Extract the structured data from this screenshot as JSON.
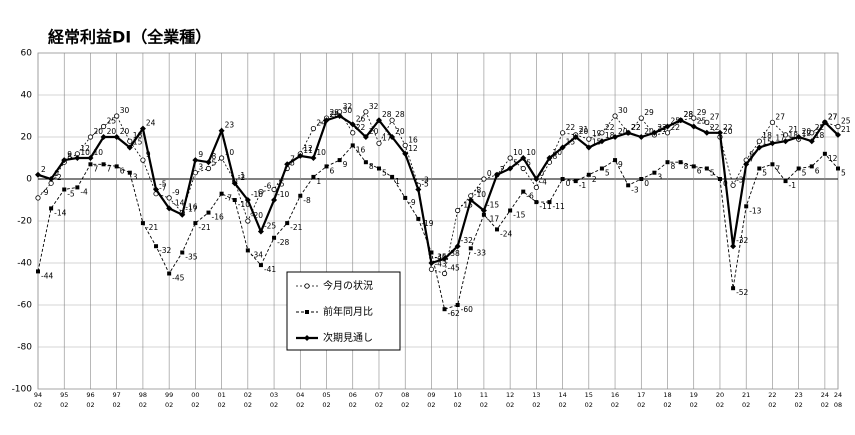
{
  "chart_data": {
    "type": "line",
    "title": "経常利益DI（全業種）",
    "categories": [
      "94",
      null,
      "95",
      null,
      "96",
      null,
      "97",
      null,
      "98",
      null,
      "99",
      null,
      "00",
      null,
      "01",
      null,
      "02",
      null,
      "03",
      null,
      "04",
      null,
      "05",
      null,
      "06",
      null,
      "07",
      null,
      "08",
      null,
      "09",
      null,
      "10",
      null,
      "11",
      null,
      "12",
      null,
      "13",
      null,
      "14",
      null,
      "15",
      null,
      "16",
      null,
      "17",
      null,
      "18",
      null,
      "19",
      null,
      "20",
      null,
      "21",
      null,
      "22",
      null,
      "23",
      null,
      "24",
      "24"
    ],
    "category_months": [
      "02",
      null,
      "02",
      null,
      "02",
      null,
      "02",
      null,
      "02",
      null,
      "02",
      null,
      "02",
      null,
      "02",
      null,
      "02",
      null,
      "02",
      null,
      "02",
      null,
      "02",
      null,
      "02",
      null,
      "02",
      null,
      "02",
      null,
      "02",
      null,
      "02",
      null,
      "02",
      null,
      "02",
      null,
      "02",
      null,
      "02",
      null,
      "02",
      null,
      "02",
      null,
      "02",
      null,
      "02",
      null,
      "02",
      null,
      "02",
      null,
      "02",
      null,
      "02",
      null,
      "02",
      null,
      "02",
      "08"
    ],
    "ylim": [
      -100,
      60
    ],
    "yticks": [
      -100,
      -80,
      -60,
      -40,
      -20,
      0,
      20,
      40,
      60
    ],
    "grid": true,
    "series": [
      {
        "name": "今月の状況",
        "color": "#000000",
        "marker": "open-circle",
        "style": "thin-dotted",
        "values": [
          -9,
          -2,
          8,
          12,
          20,
          25,
          30,
          18,
          9,
          -7,
          -9,
          -16,
          3,
          5,
          10,
          -1,
          -20,
          -6,
          -5,
          5,
          12,
          24,
          29,
          32,
          22,
          32,
          17,
          28,
          16,
          -3,
          -43,
          -45,
          -15,
          -8,
          0,
          2,
          10,
          5,
          -4,
          8,
          22,
          21,
          19,
          22,
          30,
          22,
          29,
          21,
          22,
          28,
          29,
          27,
          20,
          -3,
          9,
          18,
          27,
          21,
          19,
          22,
          27,
          25
        ]
      },
      {
        "name": "前年同月比",
        "color": "#000000",
        "marker": "square",
        "style": "dashed",
        "values": [
          -44,
          -14,
          -5,
          -4,
          7,
          7,
          6,
          3,
          -21,
          -32,
          -45,
          -35,
          -21,
          -16,
          -7,
          -10,
          -34,
          -41,
          -28,
          -21,
          -8,
          1,
          6,
          9,
          16,
          8,
          5,
          1,
          -9,
          -19,
          -35,
          -62,
          -60,
          -33,
          -17,
          -24,
          -15,
          -6,
          -11,
          -11,
          0,
          -1,
          2,
          5,
          9,
          -3,
          0,
          3,
          8,
          8,
          6,
          5,
          0,
          -52,
          -13,
          5,
          7,
          -1,
          5,
          6,
          12,
          5
        ]
      },
      {
        "name": "次期見通し",
        "color": "#000000",
        "marker": "diamond",
        "style": "thick",
        "values": [
          2,
          0,
          9,
          10,
          10,
          20,
          20,
          15,
          24,
          -5,
          -14,
          -17,
          9,
          8,
          23,
          -2,
          -10,
          -25,
          -10,
          7,
          11,
          10,
          28,
          30,
          26,
          20,
          28,
          20,
          12,
          -5,
          -40,
          -38,
          -32,
          -10,
          -15,
          2,
          5,
          10,
          0,
          10,
          15,
          20,
          15,
          18,
          20,
          22,
          20,
          22,
          25,
          28,
          25,
          22,
          22,
          -32,
          7,
          15,
          17,
          18,
          20,
          18,
          27,
          21
        ]
      }
    ]
  }
}
